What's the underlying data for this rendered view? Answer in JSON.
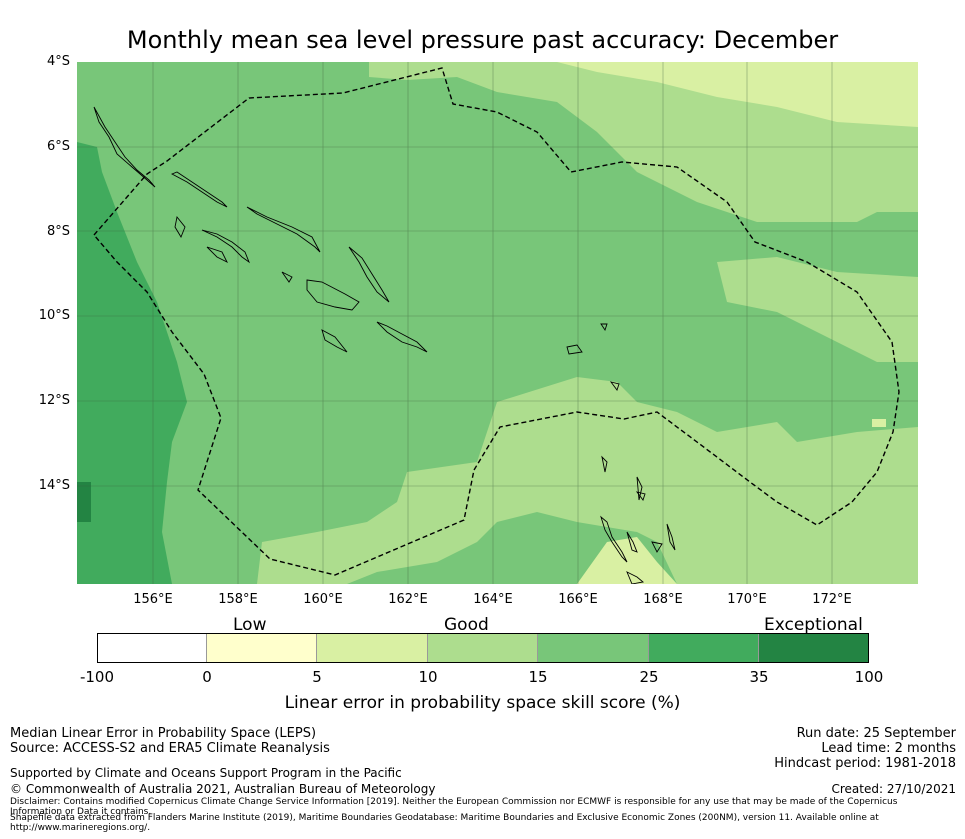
{
  "title": "Monthly mean sea level pressure past accuracy: December",
  "map": {
    "lat_labels": [
      "4°S",
      "6°S",
      "8°S",
      "10°S",
      "12°S",
      "14°S"
    ],
    "lon_labels": [
      "156°E",
      "158°E",
      "160°E",
      "162°E",
      "164°E",
      "166°E",
      "168°E",
      "170°E",
      "172°E"
    ],
    "extent": {
      "lon_min": 154.2,
      "lon_max": 174.0,
      "lat_min": -16.3,
      "lat_max": -4.0
    }
  },
  "colorbar": {
    "categories": [
      "Low",
      "Good",
      "Exceptional"
    ],
    "ticks": [
      "-100",
      "0",
      "5",
      "10",
      "15",
      "25",
      "35",
      "100"
    ],
    "colors": [
      "#ffffff",
      "#ffffcc",
      "#d9f0a3",
      "#addd8e",
      "#78c679",
      "#41ab5d",
      "#238443"
    ],
    "title": "Linear error in probability space skill score (%)"
  },
  "footer": {
    "left1": "Median Linear Error in Probability Space (LEPS)",
    "left2": "Source: ACCESS-S2 and ERA5 Climate Reanalysis",
    "support": "Supported by Climate and Oceans Support Program in the Pacific",
    "copyright": "© Commonwealth of Australia 2021, Australian Bureau of Meteorology",
    "disclaimer": "Disclaimer: Contains modified Copernicus Climate Change Service Information [2019]. Neither the European Commission nor ECMWF is responsible for any use that may be made of the Copernicus Information or Data it contains.",
    "shapefile": "Shapefile data extracted from Flanders Marine Institute (2019), Maritime Boundaries Geodatabase: Maritime Boundaries and Exclusive Economic Zones (200NM), version 11. Available online at http://www.marineregions.org/.",
    "run_date": "Run date: 25 September",
    "lead_time": "Lead time: 2 months",
    "hindcast": "Hindcast period: 1981-2018",
    "created": "Created: 27/10/2021"
  }
}
